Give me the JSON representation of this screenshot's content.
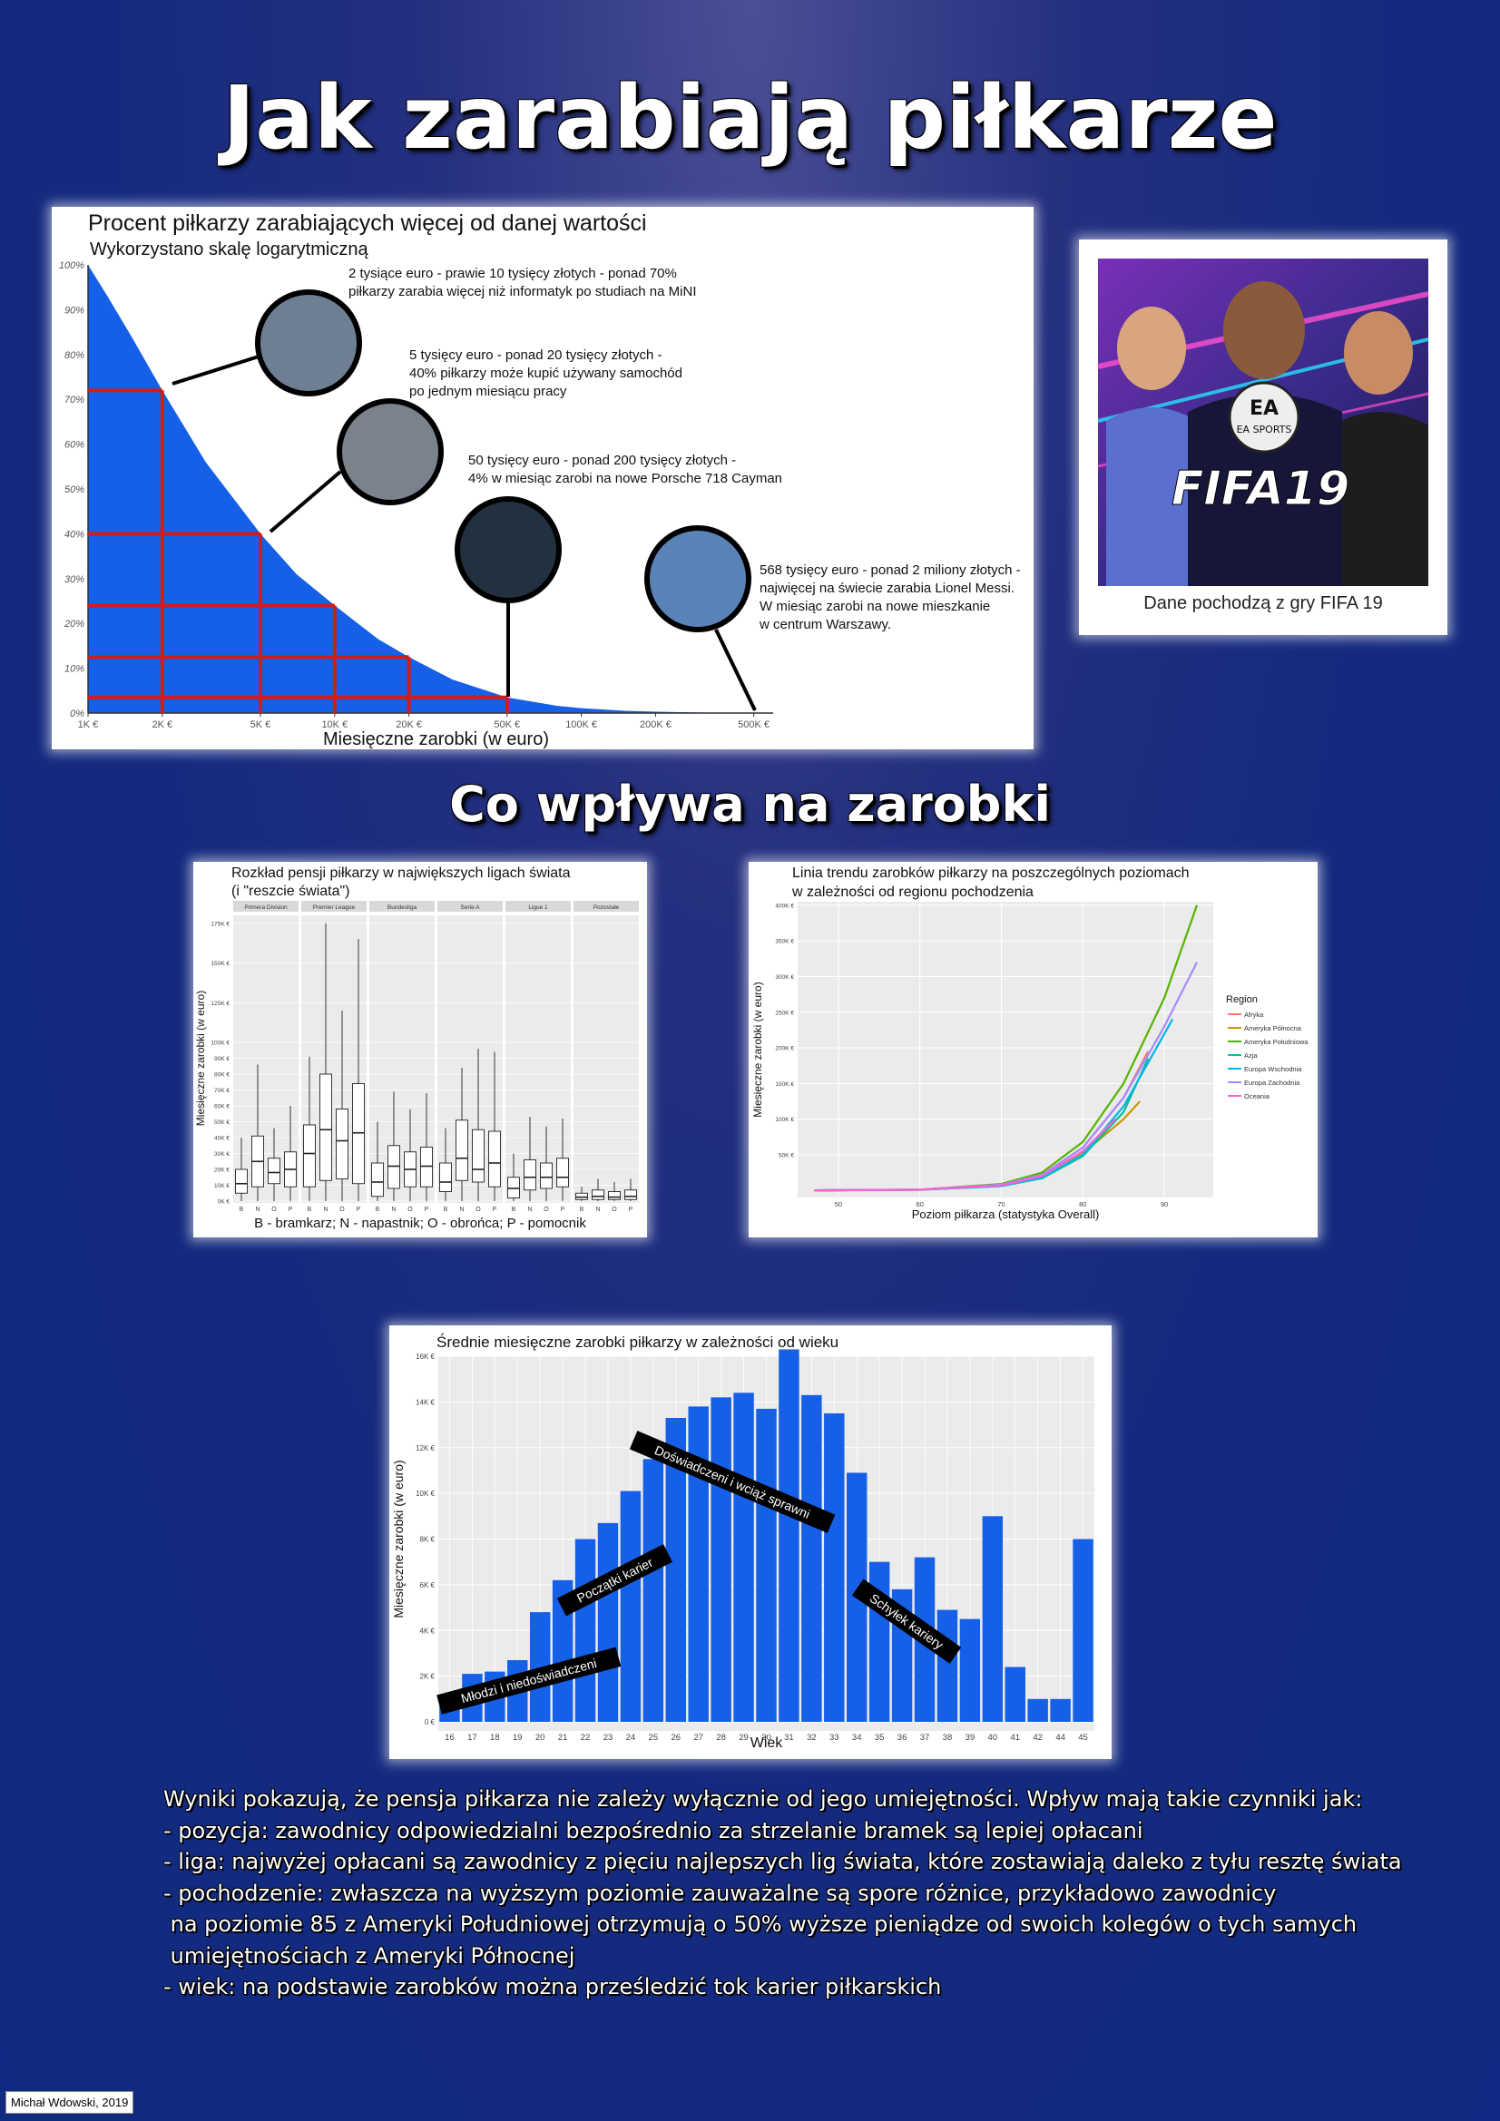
{
  "header": {
    "title": "Jak zarabiają piłkarze",
    "section_title": "Co wpływa na zarobki"
  },
  "fifa_panel": {
    "image_icon": "fifa19-cover-image",
    "caption": "Dane pochodzą z gry FIFA 19",
    "cover_logo": "FIFA19",
    "cover_brand": "EA SPORTS"
  },
  "colors": {
    "bar": "#1560e6",
    "grid_red": "#d51a1a",
    "gray_bg": "#ebebeb"
  },
  "chart_data": [
    {
      "type": "area",
      "title": "Procent piłkarzy zarabiających więcej od danej wartości",
      "subtitle": "Wykorzystano skalę logarytmiczną",
      "xlabel": "Miesięczne zarobki (w euro)",
      "ylabel": "",
      "x_scale": "log",
      "x_ticks": [
        1000,
        2000,
        5000,
        10000,
        20000,
        50000,
        100000,
        200000,
        500000
      ],
      "x_tick_labels": [
        "1K €",
        "2K €",
        "5K €",
        "10K €",
        "20K €",
        "50K €",
        "100K €",
        "200K €",
        "500K €"
      ],
      "y_ticks": [
        0,
        10,
        20,
        30,
        40,
        50,
        60,
        70,
        80,
        90,
        100
      ],
      "y_tick_labels": [
        "0%",
        "10%",
        "20%",
        "30%",
        "40%",
        "50%",
        "60%",
        "70%",
        "80%",
        "90%",
        "100%"
      ],
      "ylim": [
        0,
        100
      ],
      "xlim": [
        1000,
        560000
      ],
      "curve": {
        "x": [
          1000,
          1200,
          1500,
          2000,
          3000,
          5000,
          7000,
          10000,
          15000,
          20000,
          30000,
          50000,
          80000,
          100000,
          150000,
          200000,
          300000,
          560000
        ],
        "y": [
          100,
          93,
          84,
          72,
          56,
          40,
          31,
          24,
          16.5,
          12.5,
          7.5,
          3.5,
          1.6,
          1.1,
          0.5,
          0.3,
          0.12,
          0
        ]
      },
      "markers": [
        {
          "x": 2000,
          "y": 72
        },
        {
          "x": 5000,
          "y": 40
        },
        {
          "x": 10000,
          "y": 24
        },
        {
          "x": 20000,
          "y": 12.5
        },
        {
          "x": 50000,
          "y": 3.5
        }
      ],
      "annotations": [
        {
          "lines": [
            "2 tysiące euro - prawie 10 tysięcy złotych - ponad 70%",
            "piłkarzy zarabia więcej niż informatyk po studiach na MiNI"
          ],
          "icon": "laptop-photo-icon"
        },
        {
          "lines": [
            "5 tysięcy euro - ponad 20 tysięcy złotych -",
            "40% piłkarzy może kupić używany samochód",
            "po jednym miesiącu pracy"
          ],
          "icon": "used-car-photo-icon"
        },
        {
          "lines": [
            "50 tysięcy euro - ponad 200 tysięcy złotych -",
            "4% w miesiąc zarobi na nowe Porsche 718 Cayman"
          ],
          "icon": "porsche-photo-icon"
        },
        {
          "lines": [
            "568 tysięcy euro - ponad 2 miliony złotych -",
            "najwięcej na świecie zarabia Lionel Messi.",
            "W miesiąc zarobi na nowe mieszkanie",
            " w centrum Warszawy."
          ],
          "icon": "warsaw-skyline-photo-icon"
        }
      ]
    },
    {
      "type": "box",
      "title": "Rozkład pensji piłkarzy w największych ligach świata",
      "subtitle": "(i \"reszcie świata\")",
      "xlabel": "B - bramkarz; N - napastnik; O - obrońca; P - pomocnik",
      "ylabel": "Miesięczne zarobki (w euro)",
      "ylim": [
        0,
        180000
      ],
      "y_ticks": [
        0,
        10000,
        20000,
        30000,
        40000,
        50000,
        60000,
        70000,
        80000,
        90000,
        100000,
        125000,
        150000,
        175000
      ],
      "y_tick_labels": [
        "0K €",
        "10K €",
        "20K €",
        "30K €",
        "40K €",
        "50K €",
        "60K €",
        "70K €",
        "80K €",
        "90K €",
        "100K €",
        "125K €",
        "150K €",
        "175K €"
      ],
      "positions": [
        "B",
        "N",
        "O",
        "P"
      ],
      "facets": [
        {
          "name": "Primera Division",
          "boxes": [
            {
              "min": 0,
              "q1": 5000,
              "median": 11000,
              "q3": 20000,
              "max": 40000
            },
            {
              "min": 0,
              "q1": 9000,
              "median": 25000,
              "q3": 41000,
              "max": 86000
            },
            {
              "min": 0,
              "q1": 11000,
              "median": 18000,
              "q3": 27000,
              "max": 46000
            },
            {
              "min": 0,
              "q1": 9000,
              "median": 20000,
              "q3": 31000,
              "max": 60000
            }
          ]
        },
        {
          "name": "Premier League",
          "boxes": [
            {
              "min": 0,
              "q1": 9000,
              "median": 30000,
              "q3": 48000,
              "max": 91000
            },
            {
              "min": 0,
              "q1": 13000,
              "median": 45000,
              "q3": 80000,
              "max": 175000
            },
            {
              "min": 0,
              "q1": 14000,
              "median": 38000,
              "q3": 58000,
              "max": 120000
            },
            {
              "min": 0,
              "q1": 11000,
              "median": 43000,
              "q3": 74000,
              "max": 165000
            }
          ]
        },
        {
          "name": "Bundesliga",
          "boxes": [
            {
              "min": 0,
              "q1": 3000,
              "median": 12000,
              "q3": 24000,
              "max": 50000
            },
            {
              "min": 0,
              "q1": 8000,
              "median": 22000,
              "q3": 35000,
              "max": 69000
            },
            {
              "min": 0,
              "q1": 9000,
              "median": 20000,
              "q3": 31000,
              "max": 58000
            },
            {
              "min": 0,
              "q1": 9000,
              "median": 22000,
              "q3": 34000,
              "max": 68000
            }
          ]
        },
        {
          "name": "Serie A",
          "boxes": [
            {
              "min": 0,
              "q1": 6000,
              "median": 12000,
              "q3": 24000,
              "max": 46000
            },
            {
              "min": 0,
              "q1": 13000,
              "median": 27000,
              "q3": 51000,
              "max": 84000
            },
            {
              "min": 0,
              "q1": 12000,
              "median": 20000,
              "q3": 45000,
              "max": 96000
            },
            {
              "min": 0,
              "q1": 9000,
              "median": 24000,
              "q3": 44000,
              "max": 94000
            }
          ]
        },
        {
          "name": "Ligue 1",
          "boxes": [
            {
              "min": 0,
              "q1": 2000,
              "median": 8000,
              "q3": 15000,
              "max": 30000
            },
            {
              "min": 0,
              "q1": 7000,
              "median": 15000,
              "q3": 26000,
              "max": 53000
            },
            {
              "min": 0,
              "q1": 8000,
              "median": 15000,
              "q3": 24000,
              "max": 47000
            },
            {
              "min": 0,
              "q1": 9000,
              "median": 15000,
              "q3": 27000,
              "max": 52000
            }
          ]
        },
        {
          "name": "Pozostałe",
          "boxes": [
            {
              "min": 0,
              "q1": 1000,
              "median": 2500,
              "q3": 5000,
              "max": 9000
            },
            {
              "min": 0,
              "q1": 1000,
              "median": 3000,
              "q3": 7000,
              "max": 14000
            },
            {
              "min": 0,
              "q1": 1000,
              "median": 2500,
              "q3": 6000,
              "max": 12000
            },
            {
              "min": 0,
              "q1": 1000,
              "median": 3000,
              "q3": 7000,
              "max": 14000
            }
          ]
        }
      ]
    },
    {
      "type": "line",
      "title": "Linia trendu zarobków piłkarzy na poszczególnych poziomach",
      "subtitle": "w zależności od regionu pochodzenia",
      "xlabel": "Poziom piłkarza (statystyka Overall)",
      "ylabel": "Miesięczne zarobki (w euro)",
      "xlim": [
        45,
        96
      ],
      "ylim": [
        -10000,
        405000
      ],
      "x_ticks": [
        50,
        60,
        70,
        80,
        90
      ],
      "y_ticks": [
        50000,
        100000,
        150000,
        200000,
        250000,
        300000,
        350000,
        400000
      ],
      "y_tick_labels": [
        "50K €",
        "100K €",
        "150K €",
        "200K €",
        "250K €",
        "300K €",
        "350K €",
        "400K €"
      ],
      "legend_title": "Region",
      "legend_position": "right",
      "series": [
        {
          "name": "Afryka",
          "color": "#f8766d",
          "x": [
            47,
            60,
            70,
            75,
            80,
            85,
            88
          ],
          "y": [
            0,
            1000,
            8000,
            22000,
            60000,
            130000,
            195000
          ]
        },
        {
          "name": "Ameryka Północna",
          "color": "#c49a00",
          "x": [
            47,
            60,
            70,
            75,
            80,
            85,
            87
          ],
          "y": [
            0,
            1000,
            7000,
            19000,
            52000,
            100000,
            125000
          ]
        },
        {
          "name": "Ameryka Południowa",
          "color": "#53b400",
          "x": [
            47,
            60,
            70,
            75,
            80,
            85,
            90,
            94
          ],
          "y": [
            0,
            1000,
            9000,
            25000,
            68000,
            150000,
            270000,
            400000
          ]
        },
        {
          "name": "Azja",
          "color": "#00c094",
          "x": [
            47,
            60,
            70,
            75,
            80,
            85,
            88
          ],
          "y": [
            0,
            800,
            6000,
            17000,
            48000,
            110000,
            185000
          ]
        },
        {
          "name": "Europa Wschodnia",
          "color": "#00b6eb",
          "x": [
            47,
            60,
            70,
            75,
            80,
            85,
            91
          ],
          "y": [
            0,
            800,
            6000,
            18000,
            50000,
            118000,
            240000
          ]
        },
        {
          "name": "Europa Zachodnia",
          "color": "#a58aff",
          "x": [
            47,
            60,
            70,
            75,
            80,
            85,
            90,
            94
          ],
          "y": [
            0,
            900,
            8000,
            22000,
            60000,
            130000,
            230000,
            320000
          ]
        },
        {
          "name": "Oceania",
          "color": "#fb61d7",
          "x": [
            47,
            60,
            70,
            75,
            80,
            84
          ],
          "y": [
            0,
            900,
            7000,
            20000,
            55000,
            100000
          ]
        }
      ]
    },
    {
      "type": "bar",
      "title": "Średnie miesięczne zarobki piłkarzy w zależności od wieku",
      "xlabel": "Wiek",
      "ylabel": "Miesięczne zarobki (w euro)",
      "ylim": [
        0,
        16000
      ],
      "y_ticks": [
        0,
        2000,
        4000,
        6000,
        8000,
        10000,
        12000,
        14000,
        16000
      ],
      "y_tick_labels": [
        "0 €",
        "2K €",
        "4K €",
        "6K €",
        "8K €",
        "10K €",
        "12K €",
        "14K €",
        "16K €"
      ],
      "categories": [
        "16",
        "17",
        "18",
        "19",
        "20",
        "21",
        "22",
        "23",
        "24",
        "25",
        "26",
        "27",
        "28",
        "29",
        "30",
        "31",
        "32",
        "33",
        "34",
        "35",
        "36",
        "37",
        "38",
        "39",
        "40",
        "41",
        "42",
        "44",
        "45"
      ],
      "values": [
        1100,
        2100,
        2200,
        2700,
        4800,
        6200,
        8000,
        8700,
        10100,
        11500,
        13300,
        13800,
        14200,
        14400,
        13700,
        16300,
        14300,
        13500,
        10900,
        7000,
        5800,
        7200,
        4900,
        4500,
        9000,
        2400,
        1000,
        1000,
        8000
      ],
      "annotations": [
        {
          "text": "Młodzi i niedoświadczeni",
          "x": 19.5,
          "y": 1800,
          "angle": -15
        },
        {
          "text": "Początki karier",
          "x": 23.3,
          "y": 6200,
          "angle": -27
        },
        {
          "text": "Doświadczeni i wciąż sprawni",
          "x": 28.5,
          "y": 10500,
          "angle": 23
        },
        {
          "text": "Schyłek kariery",
          "x": 36.2,
          "y": 4400,
          "angle": 35
        }
      ]
    }
  ],
  "conclusions": [
    "Wyniki pokazują, że pensja piłkarza nie zależy wyłącznie od jego umiejętności. Wpływ mają takie czynniki jak:",
    "- pozycja: zawodnicy odpowiedzialni bezpośrednio za strzelanie bramek są lepiej opłacani",
    "- liga: najwyżej opłacani są zawodnicy z pięciu najlepszych lig świata, które zostawiają daleko z tyłu resztę świata",
    "- pochodzenie: zwłaszcza na wyższym poziomie zauważalne są spore różnice, przykładowo zawodnicy",
    " na poziomie 85 z Ameryki Południowej otrzymują o 50% wyższe pieniądze od swoich kolegów o tych samych",
    " umiejętnościach z Ameryki Północnej",
    "- wiek: na podstawie zarobków można prześledzić tok karier piłkarskich"
  ],
  "footer": {
    "author": "Michał Wdowski, 2019"
  }
}
